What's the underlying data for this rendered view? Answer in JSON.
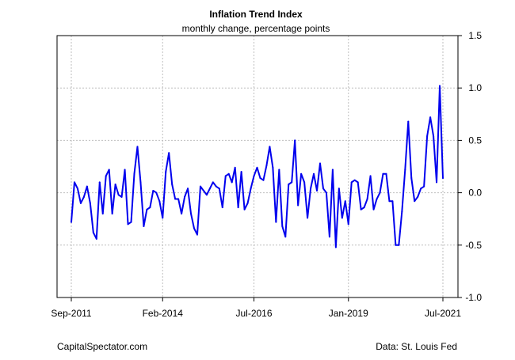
{
  "chart_data": {
    "type": "line",
    "title": "Inflation Trend Index",
    "subtitle": "monthly change, percentage points",
    "xlabel": "",
    "ylabel": "",
    "x_tick_labels": [
      "Sep-2011",
      "Feb-2014",
      "Jul-2016",
      "Jan-2019",
      "Jul-2021"
    ],
    "x_tick_dates": [
      "2011-09",
      "2014-02",
      "2016-07",
      "2019-01",
      "2021-07"
    ],
    "xlim": [
      "2011-09",
      "2021-07"
    ],
    "ylim": [
      -1.0,
      1.5
    ],
    "y_ticks": [
      -1.0,
      -0.5,
      0.0,
      0.5,
      1.0,
      1.5
    ],
    "y_tick_labels": [
      "-1.0",
      "-0.5",
      "0.0",
      "0.5",
      "1.0",
      "1.5"
    ],
    "y_axis_side": "right",
    "grid": true,
    "legend": "none",
    "colors": {
      "series": "#0000ee",
      "grid": "#bebebe",
      "axis": "#000000"
    },
    "series": [
      {
        "x": [
          "2011-09",
          "2011-10",
          "2011-11",
          "2011-12",
          "2012-01",
          "2012-02",
          "2012-03",
          "2012-04",
          "2012-05",
          "2012-06",
          "2012-07",
          "2012-08",
          "2012-09",
          "2012-10",
          "2012-11",
          "2012-12",
          "2013-01",
          "2013-02",
          "2013-03",
          "2013-04",
          "2013-05",
          "2013-06",
          "2013-07",
          "2013-08",
          "2013-09",
          "2013-10",
          "2013-11",
          "2013-12",
          "2014-01",
          "2014-02",
          "2014-03",
          "2014-04",
          "2014-05",
          "2014-06",
          "2014-07",
          "2014-08",
          "2014-09",
          "2014-10",
          "2014-11",
          "2014-12",
          "2015-01",
          "2015-02",
          "2015-03",
          "2015-04",
          "2015-05",
          "2015-06",
          "2015-07",
          "2015-08",
          "2015-09",
          "2015-10",
          "2015-11",
          "2015-12",
          "2016-01",
          "2016-02",
          "2016-03",
          "2016-04",
          "2016-05",
          "2016-06",
          "2016-07",
          "2016-08",
          "2016-09",
          "2016-10",
          "2016-11",
          "2016-12",
          "2017-01",
          "2017-02",
          "2017-03",
          "2017-04",
          "2017-05",
          "2017-06",
          "2017-07",
          "2017-08",
          "2017-09",
          "2017-10",
          "2017-11",
          "2017-12",
          "2018-01",
          "2018-02",
          "2018-03",
          "2018-04",
          "2018-05",
          "2018-06",
          "2018-07",
          "2018-08",
          "2018-09",
          "2018-10",
          "2018-11",
          "2018-12",
          "2019-01",
          "2019-02",
          "2019-03",
          "2019-04",
          "2019-05",
          "2019-06",
          "2019-07",
          "2019-08",
          "2019-09",
          "2019-10",
          "2019-11",
          "2019-12",
          "2020-01",
          "2020-02",
          "2020-03",
          "2020-04",
          "2020-05",
          "2020-06",
          "2020-07",
          "2020-08",
          "2020-09",
          "2020-10",
          "2020-11",
          "2020-12",
          "2021-01",
          "2021-02",
          "2021-03",
          "2021-04",
          "2021-05",
          "2021-06",
          "2021-07"
        ],
        "values": [
          -0.28,
          0.1,
          0.04,
          -0.1,
          -0.04,
          0.06,
          -0.1,
          -0.38,
          -0.44,
          0.1,
          -0.2,
          0.16,
          0.22,
          -0.2,
          0.08,
          -0.02,
          -0.04,
          0.22,
          -0.3,
          -0.28,
          0.18,
          0.44,
          0.1,
          -0.32,
          -0.16,
          -0.14,
          0.02,
          0.0,
          -0.08,
          -0.24,
          0.2,
          0.38,
          0.08,
          -0.06,
          -0.06,
          -0.2,
          -0.04,
          0.04,
          -0.2,
          -0.34,
          -0.4,
          0.06,
          0.02,
          -0.02,
          0.04,
          0.1,
          0.06,
          0.04,
          -0.14,
          0.16,
          0.18,
          0.1,
          0.24,
          -0.14,
          0.2,
          -0.16,
          -0.1,
          0.04,
          0.16,
          0.24,
          0.14,
          0.12,
          0.26,
          0.44,
          0.24,
          -0.28,
          0.22,
          -0.32,
          -0.42,
          0.08,
          0.1,
          0.5,
          -0.12,
          0.18,
          0.1,
          -0.24,
          0.04,
          0.18,
          0.02,
          0.28,
          0.04,
          0.0,
          -0.42,
          0.22,
          -0.52,
          0.04,
          -0.24,
          -0.08,
          -0.3,
          0.1,
          0.12,
          0.1,
          -0.16,
          -0.14,
          -0.06,
          0.16,
          -0.16,
          -0.06,
          0.0,
          0.18,
          0.18,
          -0.08,
          -0.08,
          -0.5,
          -0.5,
          -0.18,
          0.22,
          0.68,
          0.14,
          -0.08,
          -0.04,
          0.04,
          0.06,
          0.54,
          0.72,
          0.54,
          0.1,
          1.02,
          0.14
        ]
      }
    ]
  },
  "footer": {
    "left": "CapitalSpectator.com",
    "right": "Data: St. Louis Fed"
  }
}
